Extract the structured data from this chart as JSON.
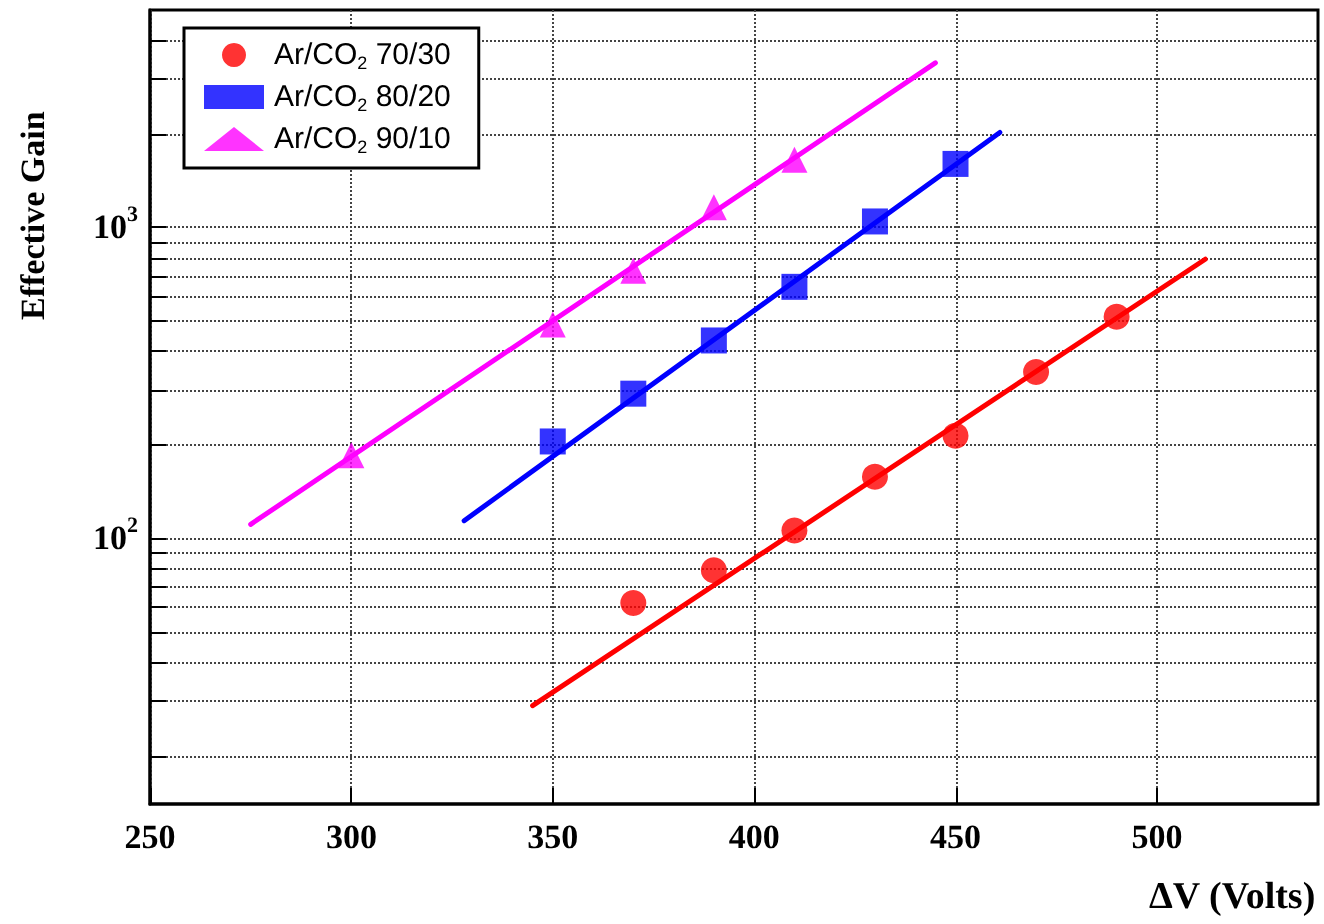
{
  "chart_data": {
    "type": "scatter",
    "xlabel": "ΔV (Volts)",
    "ylabel": "Effective Gain",
    "xlim": [
      250,
      540
    ],
    "xticks": [
      250,
      300,
      350,
      400,
      450,
      500
    ],
    "ylim": [
      14,
      5000
    ],
    "log": "y",
    "yticks": [
      {
        "value": 20,
        "label": null
      },
      {
        "value": 30,
        "label": null
      },
      {
        "value": 40,
        "label": null
      },
      {
        "value": 50,
        "label": null
      },
      {
        "value": 60,
        "label": null
      },
      {
        "value": 70,
        "label": null
      },
      {
        "value": 80,
        "label": null
      },
      {
        "value": 90,
        "label": null
      },
      {
        "value": 100,
        "label": "10$^{2}$"
      },
      {
        "value": 200,
        "label": null
      },
      {
        "value": 300,
        "label": null
      },
      {
        "value": 400,
        "label": null
      },
      {
        "value": 500,
        "label": null
      },
      {
        "value": 600,
        "label": null
      },
      {
        "value": 700,
        "label": null
      },
      {
        "value": 800,
        "label": null
      },
      {
        "value": 900,
        "label": null
      },
      {
        "value": 1000,
        "label": "10$^{3}$"
      },
      {
        "value": 2000,
        "label": null
      },
      {
        "value": 3000,
        "label": null
      },
      {
        "value": 4000,
        "label": null
      }
    ],
    "grid": true,
    "legend": "top left",
    "series": [
      {
        "name": "Ar/CO$_{2}$ 70/30",
        "marker": "circle",
        "color": "#ff0000",
        "x": [
          370,
          390,
          410,
          430,
          450,
          470,
          490
        ],
        "values": [
          62,
          79,
          106,
          158,
          214,
          343,
          516
        ]
      },
      {
        "name": "Ar/CO$_{2}$ 80/20",
        "marker": "square",
        "color": "#0000ff",
        "x": [
          350,
          370,
          390,
          410,
          430,
          450
        ],
        "values": [
          205,
          292,
          433,
          644,
          1045,
          1600
        ]
      },
      {
        "name": "Ar/CO$_{2}$ 90/10",
        "marker": "triangle",
        "color": "#ff00ff",
        "x": [
          300,
          350,
          370,
          390,
          410
        ],
        "values": [
          185,
          487,
          725,
          1160,
          1650
        ]
      },
      {
        "type": "line",
        "marker": "none",
        "color": "#ff0000",
        "x": [
          345,
          512
        ],
        "values": [
          29,
          790
        ]
      },
      {
        "type": "line",
        "marker": "none",
        "color": "#0000ff",
        "x": [
          328,
          461
        ],
        "values": [
          114,
          2020
        ]
      },
      {
        "type": "line",
        "marker": "none",
        "color": "#ff00ff",
        "x": [
          275,
          445
        ],
        "values": [
          111,
          3380
        ]
      }
    ]
  }
}
